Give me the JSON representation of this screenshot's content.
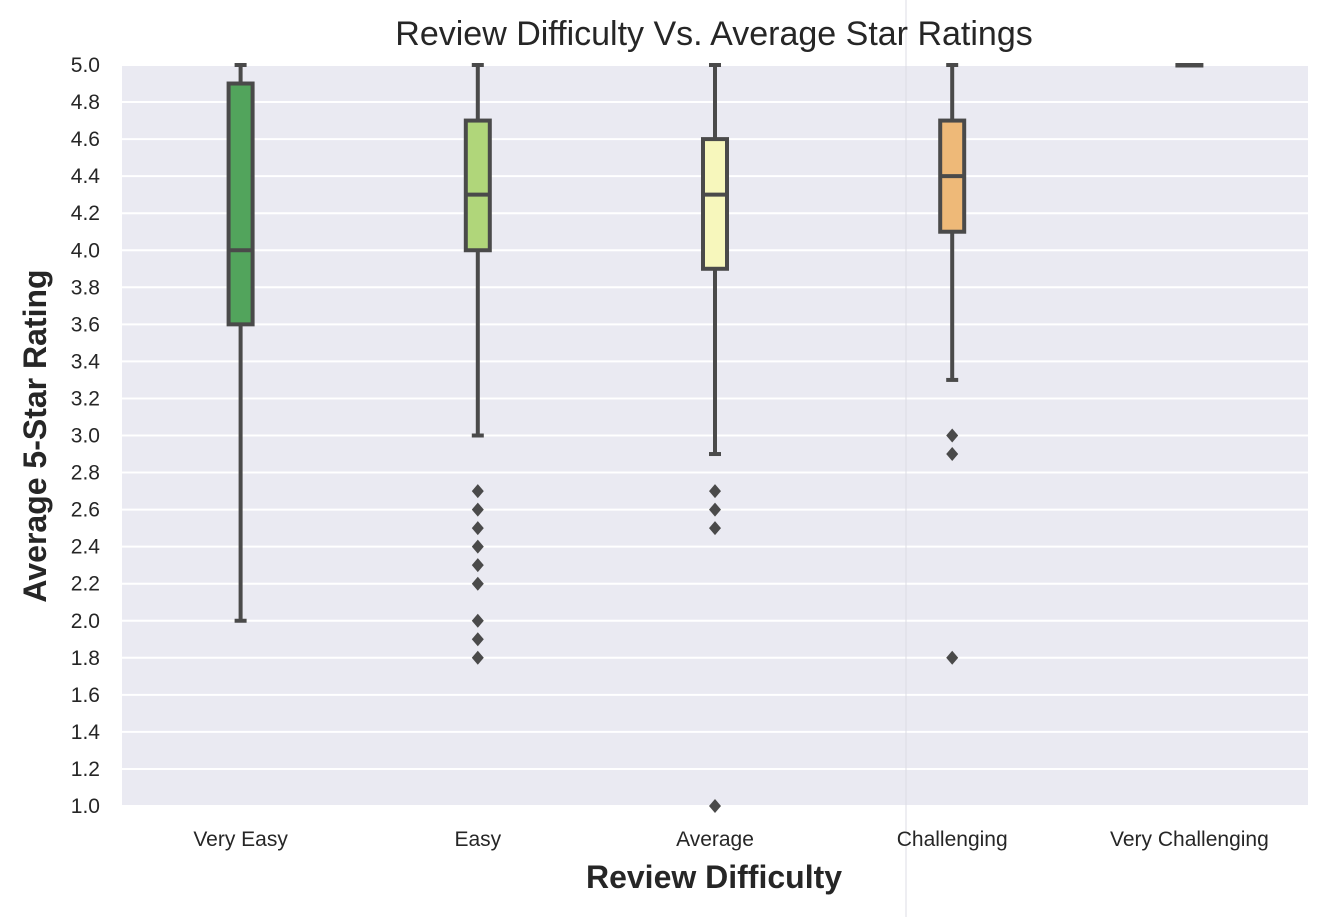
{
  "chart_data": {
    "type": "box",
    "title": "Review Difficulty Vs. Average Star Ratings",
    "xlabel": "Review Difficulty",
    "ylabel": "Average 5-Star Rating",
    "ylim": [
      1.0,
      5.0
    ],
    "yticks": [
      "1.0",
      "1.2",
      "1.4",
      "1.6",
      "1.8",
      "2.0",
      "2.2",
      "2.4",
      "2.6",
      "2.8",
      "3.0",
      "3.2",
      "3.4",
      "3.6",
      "3.8",
      "4.0",
      "4.2",
      "4.4",
      "4.6",
      "4.8",
      "5.0"
    ],
    "grid": true,
    "categories": [
      "Very Easy",
      "Easy",
      "Average",
      "Challenging",
      "Very Challenging"
    ],
    "boxes": [
      {
        "category": "Very Easy",
        "whisker_low": 2.0,
        "q1": 3.6,
        "median": 4.0,
        "q3": 4.9,
        "whisker_high": 5.0,
        "outliers": [],
        "color": "#52a45c"
      },
      {
        "category": "Easy",
        "whisker_low": 3.0,
        "q1": 4.0,
        "median": 4.3,
        "q3": 4.7,
        "whisker_high": 5.0,
        "outliers": [
          2.7,
          2.6,
          2.5,
          2.4,
          2.3,
          2.2,
          2.0,
          1.9,
          1.8
        ],
        "color": "#b0d67a"
      },
      {
        "category": "Average",
        "whisker_low": 2.9,
        "q1": 3.9,
        "median": 4.3,
        "q3": 4.6,
        "whisker_high": 5.0,
        "outliers": [
          2.7,
          2.6,
          2.5,
          1.0
        ],
        "color": "#f7f7bc"
      },
      {
        "category": "Challenging",
        "whisker_low": 3.3,
        "q1": 4.1,
        "median": 4.4,
        "q3": 4.7,
        "whisker_high": 5.0,
        "outliers": [
          3.0,
          2.9,
          1.8
        ],
        "color": "#eeb978"
      },
      {
        "category": "Very Challenging",
        "whisker_low": 5.0,
        "q1": 5.0,
        "median": 5.0,
        "q3": 5.0,
        "whisker_high": 5.0,
        "outliers": [],
        "color": "#e67f4c"
      }
    ],
    "colors": {
      "plot_background": "#eaeaf2",
      "grid": "#ffffff",
      "box_edge": "#4a4a4a"
    }
  }
}
